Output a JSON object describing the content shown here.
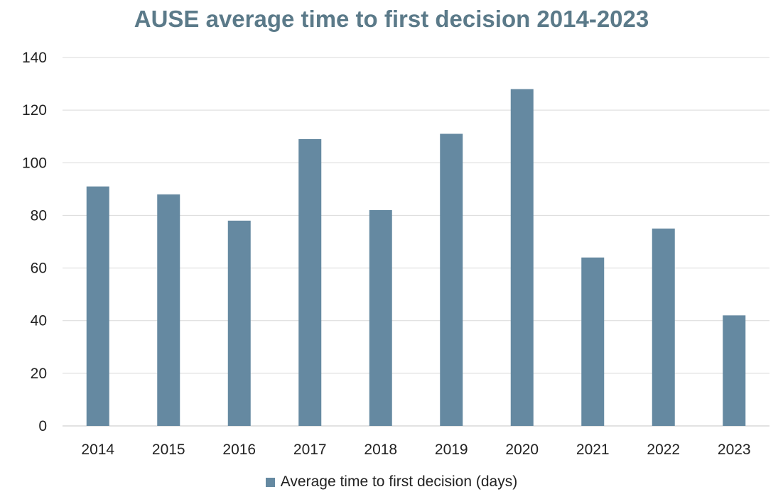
{
  "chart_data": {
    "type": "bar",
    "title": "AUSE average time to first decision 2014-2023",
    "categories": [
      "2014",
      "2015",
      "2016",
      "2017",
      "2018",
      "2019",
      "2020",
      "2021",
      "2022",
      "2023"
    ],
    "series": [
      {
        "name": "Average time to first decision (days)",
        "values": [
          91,
          88,
          78,
          109,
          82,
          111,
          128,
          64,
          75,
          42
        ]
      }
    ],
    "ylim": [
      0,
      140
    ],
    "yticks": [
      "0",
      "20",
      "40",
      "60",
      "80",
      "100",
      "120",
      "140"
    ],
    "grid": true,
    "legend_position": "bottom",
    "bar_color": "#6589a1",
    "title_color": "#5b7a89",
    "grid_color": "#d9d9d9"
  }
}
